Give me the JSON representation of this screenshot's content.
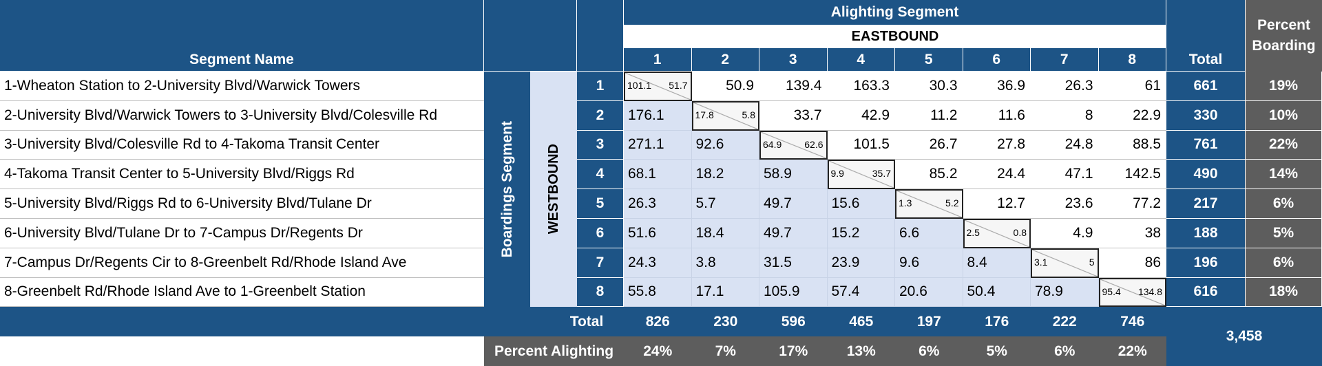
{
  "header": {
    "segment_name": "Segment Name",
    "alighting_segment": "Alighting Segment",
    "eastbound": "EASTBOUND",
    "total": "Total",
    "percent_boarding": "Percent Boarding",
    "boardings_segment": "Boardings Segment",
    "westbound": "WESTBOUND",
    "columns": [
      "1",
      "2",
      "3",
      "4",
      "5",
      "6",
      "7",
      "8"
    ]
  },
  "rows": [
    {
      "name": "1-Wheaton Station to 2-University Blvd/Warwick Towers",
      "num": "1",
      "cells": [
        "101.1|51.7",
        "50.9",
        "139.4",
        "163.3",
        "30.3",
        "36.9",
        "26.3",
        "61"
      ],
      "total": "661",
      "pct": "19%"
    },
    {
      "name": "2-University Blvd/Warwick Towers to 3-University Blvd/Colesville Rd",
      "num": "2",
      "cells": [
        "176.1",
        "17.8|5.8",
        "33.7",
        "42.9",
        "11.2",
        "11.6",
        "8",
        "22.9"
      ],
      "total": "330",
      "pct": "10%"
    },
    {
      "name": "3-University Blvd/Colesville Rd to 4-Takoma Transit Center",
      "num": "3",
      "cells": [
        "271.1",
        "92.6",
        "64.9|62.6",
        "101.5",
        "26.7",
        "27.8",
        "24.8",
        "88.5"
      ],
      "total": "761",
      "pct": "22%"
    },
    {
      "name": "4-Takoma Transit Center to 5-University Blvd/Riggs Rd",
      "num": "4",
      "cells": [
        "68.1",
        "18.2",
        "58.9",
        "9.9|35.7",
        "85.2",
        "24.4",
        "47.1",
        "142.5"
      ],
      "total": "490",
      "pct": "14%"
    },
    {
      "name": "5-University Blvd/Riggs Rd to 6-University Blvd/Tulane Dr",
      "num": "5",
      "cells": [
        "26.3",
        "5.7",
        "49.7",
        "15.6",
        "1.3|5.2",
        "12.7",
        "23.6",
        "77.2"
      ],
      "total": "217",
      "pct": "6%"
    },
    {
      "name": "6-University Blvd/Tulane Dr to 7-Campus Dr/Regents Dr",
      "num": "6",
      "cells": [
        "51.6",
        "18.4",
        "49.7",
        "15.2",
        "6.6",
        "2.5|0.8",
        "4.9",
        "38"
      ],
      "total": "188",
      "pct": "5%"
    },
    {
      "name": "7-Campus Dr/Regents Cir to 8-Greenbelt Rd/Rhode Island Ave",
      "num": "7",
      "cells": [
        "24.3",
        "3.8",
        "31.5",
        "23.9",
        "9.6",
        "8.4",
        "3.1|5",
        "86"
      ],
      "total": "196",
      "pct": "6%"
    },
    {
      "name": "8-Greenbelt Rd/Rhode Island Ave to 1-Greenbelt Station",
      "num": "8",
      "cells": [
        "55.8",
        "17.1",
        "105.9",
        "57.4",
        "20.6",
        "50.4",
        "78.9",
        "95.4|134.8"
      ],
      "total": "616",
      "pct": "18%"
    }
  ],
  "footer": {
    "total_label": "Total",
    "totals": [
      "826",
      "230",
      "596",
      "465",
      "197",
      "176",
      "222",
      "746"
    ],
    "percent_alighting_label": "Percent Alighting",
    "percents": [
      "24%",
      "7%",
      "17%",
      "13%",
      "6%",
      "5%",
      "6%",
      "22%"
    ],
    "grand_total": "3,458"
  },
  "colors": {
    "header_blue": "#1d5486",
    "gray": "#5d5d5d",
    "light_blue": "#d9e2f3"
  }
}
